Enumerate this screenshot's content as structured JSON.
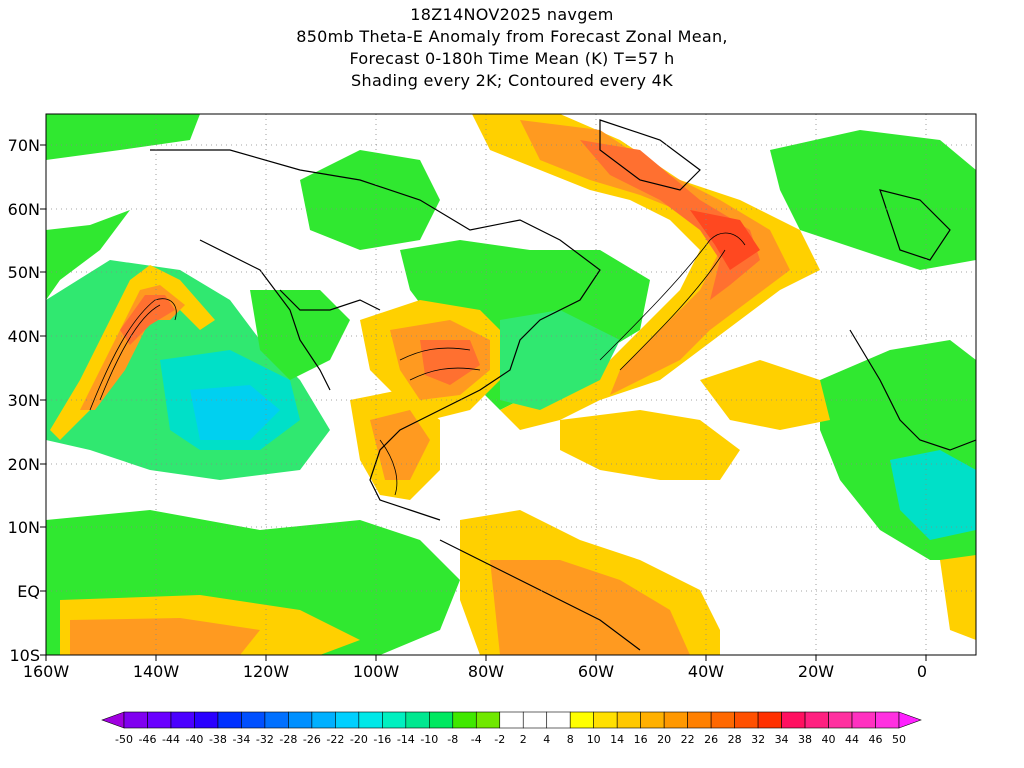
{
  "title": {
    "line1": "18Z14NOV2025 navgem",
    "line2": "850mb Theta-E Anomaly from Forecast Zonal Mean,",
    "line3": "Forecast 0-180h Time Mean (K) T=57 h",
    "line4": "Shading every 2K; Contoured every 4K"
  },
  "map": {
    "y_axis_labels": [
      "70N",
      "60N",
      "50N",
      "40N",
      "30N",
      "20N",
      "10N",
      "EQ",
      "10S"
    ],
    "x_axis_labels": [
      "160W",
      "140W",
      "120W",
      "100W",
      "80W",
      "60W",
      "40W",
      "20W",
      "0"
    ],
    "lat_range": [
      -10,
      75
    ],
    "lon_range": [
      -160,
      10
    ]
  },
  "colorbar": {
    "labels": [
      "-50",
      "-46",
      "-44",
      "-40",
      "-38",
      "-34",
      "-32",
      "-28",
      "-26",
      "-22",
      "-20",
      "-16",
      "-14",
      "-10",
      "-8",
      "-4",
      "-2",
      "2",
      "4",
      "8",
      "10",
      "14",
      "16",
      "20",
      "22",
      "26",
      "28",
      "32",
      "34",
      "38",
      "40",
      "44",
      "46",
      "50"
    ],
    "colors": [
      "#a000e0",
      "#8000f0",
      "#6a00ff",
      "#4b00ff",
      "#2a00ff",
      "#0030ff",
      "#0050ff",
      "#0070ff",
      "#0090ff",
      "#00b0ff",
      "#00d0ff",
      "#00e8e8",
      "#00f0c0",
      "#00e890",
      "#00e860",
      "#40e800",
      "#70e800",
      "#ffffff",
      "#ffffff",
      "#ffffff",
      "#ffff00",
      "#ffe000",
      "#ffc800",
      "#ffb000",
      "#ff9800",
      "#ff8000",
      "#ff6800",
      "#ff5000",
      "#ff3000",
      "#ff1060",
      "#ff2080",
      "#ff30a0",
      "#ff30c0",
      "#ff30e0",
      "#ff20ff"
    ]
  }
}
